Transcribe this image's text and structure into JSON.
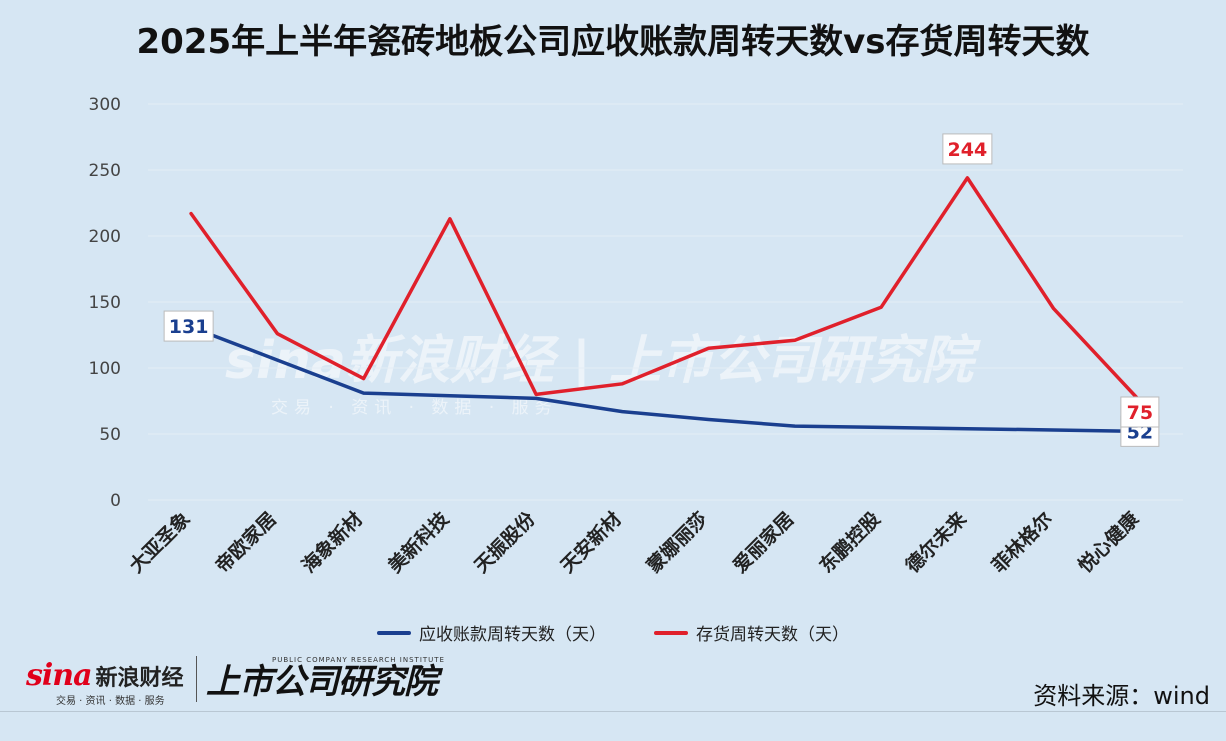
{
  "chart_data": {
    "type": "line",
    "title": "2025年上半年瓷砖地板公司应收账款周转天数vs存货周转天数",
    "categories": [
      "大亚圣象",
      "帝欧家居",
      "海象新材",
      "美新科技",
      "天振股份",
      "天安新材",
      "蒙娜丽莎",
      "爱丽家居",
      "东鹏控股",
      "德尔未来",
      "菲林格尔",
      "悦心健康"
    ],
    "ylim": [
      0,
      300
    ],
    "yticks": [
      "0",
      "50",
      "100",
      "150",
      "200",
      "250",
      "300"
    ],
    "grid": true,
    "legend_position": "bottom",
    "series": [
      {
        "name": "应收账款周转天数（天）",
        "color": "#1a3f8f",
        "values": [
          131,
          106,
          81,
          79,
          77,
          67,
          61,
          56,
          55,
          54,
          53,
          52
        ]
      },
      {
        "name": "存货周转天数（天）",
        "color": "#e0202b",
        "values": [
          217,
          126,
          92,
          213,
          80,
          88,
          115,
          121,
          146,
          244,
          145,
          75
        ]
      }
    ],
    "data_labels": [
      {
        "series": 0,
        "index": 0,
        "text": "131"
      },
      {
        "series": 0,
        "index": 11,
        "text": "52"
      },
      {
        "series": 1,
        "index": 9,
        "text": "244"
      },
      {
        "series": 1,
        "index": 11,
        "text": "75"
      }
    ]
  },
  "watermark": {
    "main": "sina新浪财经 | 上市公司研究院",
    "sub": "交易 · 资讯 · 数据 · 服务"
  },
  "footer": {
    "source": "资料来源：wind",
    "sina_word": "sina",
    "sina_cn": "新浪财经",
    "sina_sub": "交易 · 资讯 · 数据 · 服务",
    "inst_en": "PUBLIC COMPANY RESEARCH INSTITUTE",
    "inst_cn": "上市公司研究院"
  }
}
